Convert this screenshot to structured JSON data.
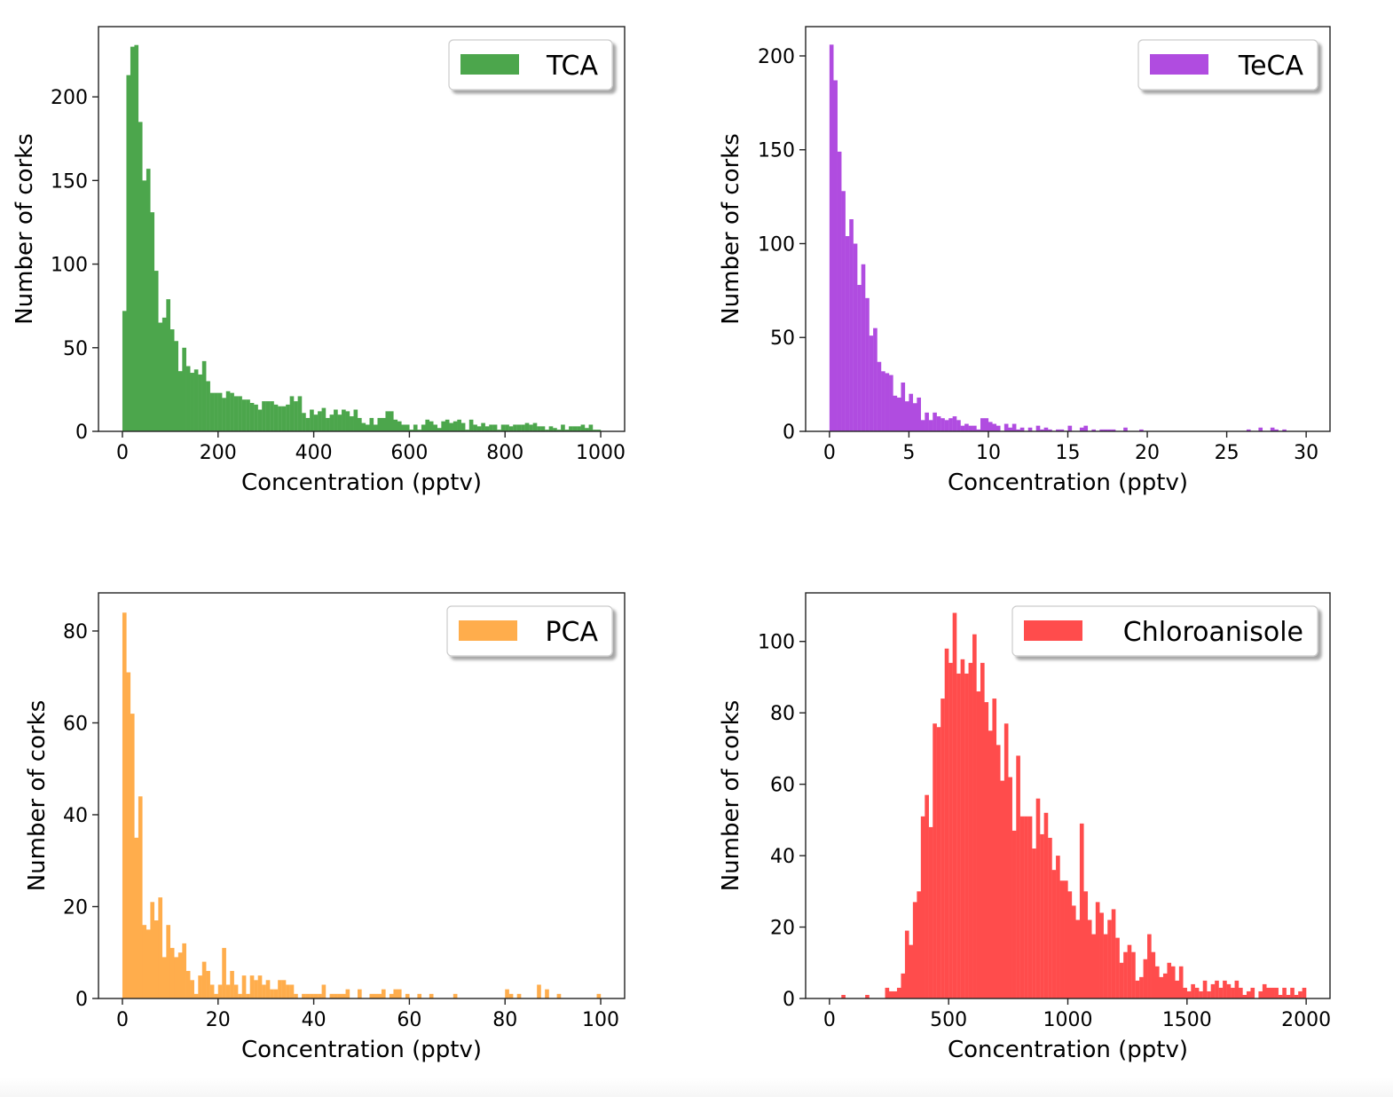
{
  "figure": {
    "layout": "2x2 grid of histograms"
  },
  "chart_data": [
    {
      "type": "bar",
      "subtype": "histogram",
      "legend": "TCA",
      "legend_placement": "top-right",
      "color": "#4ca64c",
      "xlabel": "Concentration (pptv)",
      "ylabel": "Number of corks",
      "xlim": [
        -50,
        1050
      ],
      "ylim": [
        0,
        242
      ],
      "xticks": [
        0,
        200,
        400,
        600,
        800,
        1000
      ],
      "yticks": [
        0,
        50,
        100,
        150,
        200
      ],
      "bin_range": [
        0,
        1000
      ],
      "bins": 120,
      "counts": [
        72,
        213,
        230,
        231,
        185,
        150,
        157,
        131,
        96,
        65,
        68,
        79,
        61,
        54,
        36,
        50,
        39,
        35,
        37,
        34,
        42,
        30,
        23,
        23,
        23,
        20,
        24,
        23,
        21,
        21,
        19,
        19,
        17,
        16,
        13,
        18,
        18,
        18,
        16,
        15,
        15,
        16,
        21,
        18,
        21,
        11,
        8,
        13,
        10,
        12,
        14,
        8,
        10,
        13,
        10,
        13,
        12,
        9,
        13,
        8,
        5,
        4,
        8,
        4,
        8,
        8,
        12,
        12,
        7,
        6,
        4,
        4,
        1,
        4,
        1,
        4,
        7,
        6,
        4,
        2,
        6,
        7,
        5,
        6,
        7,
        5,
        1,
        7,
        4,
        3,
        5,
        3,
        4,
        4,
        1,
        4,
        4,
        3,
        4,
        4,
        4,
        5,
        4,
        5,
        3,
        3,
        1,
        3,
        2,
        1,
        4,
        1,
        3,
        3,
        3,
        4,
        2,
        4,
        1,
        1
      ]
    },
    {
      "type": "bar",
      "subtype": "histogram",
      "legend": "TeCA",
      "legend_placement": "top-right",
      "color": "#b04ce0",
      "xlabel": "Concentration (pptv)",
      "ylabel": "Number of corks",
      "xlim": [
        -1.5,
        31.5
      ],
      "ylim": [
        0,
        215.6
      ],
      "xticks": [
        0,
        5,
        10,
        15,
        20,
        25,
        30
      ],
      "yticks": [
        0,
        50,
        100,
        150,
        200
      ],
      "bin_range": [
        0,
        30
      ],
      "bins": 120,
      "counts": [
        206,
        187,
        149,
        128,
        104,
        113,
        100,
        78,
        89,
        71,
        51,
        55,
        37,
        32,
        31,
        30,
        19,
        18,
        26,
        16,
        20,
        15,
        18,
        6,
        10,
        6,
        10,
        8,
        7,
        6,
        7,
        8,
        6,
        3,
        4,
        3,
        3,
        1,
        7,
        7,
        5,
        4,
        3,
        0,
        4,
        2,
        4,
        1,
        2,
        0,
        2,
        0,
        3,
        1,
        2,
        1,
        0,
        1,
        1,
        0,
        3,
        0,
        0,
        2,
        3,
        0,
        1,
        0,
        1,
        1,
        1,
        1,
        0,
        0,
        2,
        0,
        0,
        0,
        1,
        0,
        0,
        0,
        0,
        0,
        0,
        0,
        0,
        0,
        0,
        0,
        0,
        0,
        0,
        0,
        0,
        0,
        0,
        0,
        0,
        0,
        0,
        0,
        0,
        0,
        0,
        1,
        0,
        0,
        2,
        0,
        0,
        2,
        1,
        0,
        1,
        0,
        0,
        0,
        0,
        0
      ]
    },
    {
      "type": "bar",
      "subtype": "histogram",
      "legend": "PCA",
      "legend_placement": "top-right",
      "color": "#ffad4c",
      "xlabel": "Concentration (pptv)",
      "ylabel": "Number of corks",
      "xlim": [
        -5,
        105
      ],
      "ylim": [
        0,
        88.3
      ],
      "xticks": [
        0,
        20,
        40,
        60,
        80,
        100
      ],
      "yticks": [
        0,
        20,
        40,
        60,
        80
      ],
      "bin_range": [
        0,
        100
      ],
      "bins": 120,
      "counts": [
        84,
        71,
        62,
        35,
        44,
        16,
        15,
        21,
        17,
        22,
        9,
        16,
        11,
        9,
        10,
        12,
        6,
        4,
        1,
        5,
        8,
        6,
        3,
        1,
        3,
        11,
        3,
        6,
        3,
        1,
        5,
        1,
        5,
        4,
        5,
        3,
        4,
        2,
        2,
        4,
        4,
        3,
        3,
        1,
        0,
        1,
        1,
        1,
        1,
        1,
        3,
        0,
        1,
        1,
        1,
        1,
        2,
        0,
        0,
        2,
        0,
        0,
        1,
        1,
        1,
        2,
        0,
        1,
        2,
        2,
        0,
        1,
        0,
        0,
        1,
        0,
        0,
        1,
        0,
        0,
        0,
        0,
        0,
        1,
        0,
        0,
        0,
        0,
        0,
        0,
        0,
        0,
        0,
        0,
        0,
        0,
        2,
        1,
        0,
        1,
        0,
        0,
        0,
        0,
        3,
        0,
        2,
        0,
        0,
        1,
        0,
        0,
        0,
        0,
        0,
        0,
        0,
        0,
        0,
        1
      ]
    },
    {
      "type": "bar",
      "subtype": "histogram",
      "legend": "Chloroanisole",
      "legend_placement": "top-right",
      "color": "#ff4c4c",
      "xlabel": "Concentration (pptv)",
      "ylabel": "Number of corks",
      "xlim": [
        -100,
        2100
      ],
      "ylim": [
        0,
        113.6
      ],
      "xticks": [
        0,
        500,
        1000,
        1500,
        2000
      ],
      "yticks": [
        0,
        20,
        40,
        60,
        80,
        100
      ],
      "bin_range": [
        0,
        2000
      ],
      "bins": 120,
      "counts": [
        0,
        0,
        0,
        1,
        0,
        0,
        0,
        0,
        0,
        1,
        0,
        0,
        0,
        0,
        3,
        2,
        2,
        3,
        7,
        19,
        15,
        27,
        30,
        51,
        57,
        48,
        77,
        76,
        84,
        98,
        94,
        108,
        91,
        95,
        91,
        94,
        102,
        86,
        94,
        83,
        75,
        84,
        71,
        61,
        77,
        62,
        47,
        68,
        51,
        51,
        51,
        42,
        56,
        46,
        52,
        45,
        36,
        40,
        33,
        33,
        30,
        26,
        22,
        49,
        30,
        22,
        18,
        27,
        24,
        18,
        22,
        25,
        17,
        10,
        13,
        15,
        13,
        5,
        6,
        11,
        18,
        13,
        9,
        6,
        7,
        10,
        9,
        5,
        9,
        3,
        2,
        4,
        3,
        2,
        5,
        2,
        4,
        5,
        3,
        5,
        4,
        3,
        5,
        3,
        1,
        2,
        3,
        0,
        2,
        4,
        3,
        3,
        3,
        1,
        3,
        1,
        3,
        1,
        2,
        3
      ]
    }
  ]
}
